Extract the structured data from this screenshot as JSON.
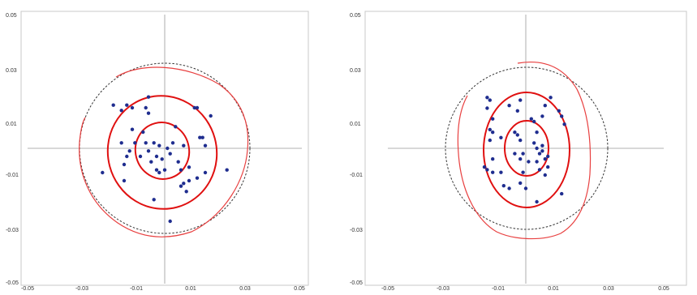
{
  "chart_data": [
    {
      "type": "scatter",
      "xlim": [
        -0.05,
        0.05
      ],
      "ylim": [
        -0.05,
        0.05
      ],
      "xticks": [
        "-0.05",
        "-0.03",
        "-0.01",
        "0.01",
        "0.03",
        "0.05"
      ],
      "yticks": [
        "0.05",
        "0.03",
        "0.01",
        "-0.01",
        "-0.03",
        "-0.05"
      ],
      "points": [
        [
          -0.019,
          0.016
        ],
        [
          -0.016,
          0.014
        ],
        [
          -0.014,
          0.016
        ],
        [
          -0.012,
          0.015
        ],
        [
          -0.006,
          0.013
        ],
        [
          -0.006,
          0.019
        ],
        [
          -0.007,
          0.015
        ],
        [
          -0.012,
          0.007
        ],
        [
          -0.011,
          0.002
        ],
        [
          -0.013,
          -0.001
        ],
        [
          -0.016,
          0.002
        ],
        [
          -0.014,
          -0.003
        ],
        [
          -0.015,
          -0.006
        ],
        [
          -0.023,
          -0.009
        ],
        [
          -0.015,
          -0.012
        ],
        [
          -0.008,
          0.006
        ],
        [
          -0.007,
          0.002
        ],
        [
          -0.006,
          -0.001
        ],
        [
          -0.004,
          0.002
        ],
        [
          -0.003,
          -0.003
        ],
        [
          -0.002,
          0.001
        ],
        [
          -0.005,
          -0.005
        ],
        [
          -0.003,
          -0.008
        ],
        [
          -0.001,
          -0.004
        ],
        [
          0.0,
          -0.008
        ],
        [
          -0.002,
          -0.009
        ],
        [
          0.001,
          0.0
        ],
        [
          0.002,
          -0.002
        ],
        [
          0.003,
          0.002
        ],
        [
          0.004,
          0.008
        ],
        [
          0.005,
          -0.005
        ],
        [
          0.006,
          -0.008
        ],
        [
          0.007,
          0.001
        ],
        [
          0.007,
          -0.013
        ],
        [
          0.006,
          -0.014
        ],
        [
          0.008,
          -0.016
        ],
        [
          0.009,
          -0.012
        ],
        [
          0.011,
          0.015
        ],
        [
          0.012,
          0.015
        ],
        [
          0.013,
          0.004
        ],
        [
          0.014,
          0.004
        ],
        [
          0.015,
          0.001
        ],
        [
          0.017,
          0.012
        ],
        [
          0.015,
          -0.009
        ],
        [
          0.012,
          -0.011
        ],
        [
          0.023,
          -0.008
        ],
        [
          -0.004,
          -0.019
        ],
        [
          0.002,
          -0.027
        ],
        [
          0.009,
          -0.007
        ],
        [
          -0.009,
          -0.003
        ]
      ]
    },
    {
      "type": "scatter",
      "xlim": [
        -0.05,
        0.05
      ],
      "ylim": [
        -0.05,
        0.05
      ],
      "xticks": [
        "-0.05",
        "-0.03",
        "-0.01",
        "0.01",
        "0.03",
        "0.05"
      ],
      "yticks": [
        "0.05",
        "0.03",
        "0.01",
        "-0.01",
        "-0.03",
        "-0.05"
      ],
      "points": [
        [
          -0.014,
          0.019
        ],
        [
          -0.013,
          0.018
        ],
        [
          -0.014,
          0.015
        ],
        [
          -0.012,
          0.011
        ],
        [
          -0.013,
          0.007
        ],
        [
          -0.012,
          0.006
        ],
        [
          -0.013,
          0.003
        ],
        [
          -0.015,
          -0.007
        ],
        [
          -0.012,
          -0.004
        ],
        [
          -0.014,
          -0.008
        ],
        [
          -0.012,
          -0.009
        ],
        [
          -0.009,
          -0.009
        ],
        [
          -0.006,
          0.016
        ],
        [
          -0.003,
          0.014
        ],
        [
          -0.002,
          0.018
        ],
        [
          -0.004,
          0.006
        ],
        [
          -0.003,
          0.005
        ],
        [
          -0.002,
          0.003
        ],
        [
          -0.004,
          -0.002
        ],
        [
          -0.002,
          -0.004
        ],
        [
          -0.001,
          -0.002
        ],
        [
          -0.001,
          -0.009
        ],
        [
          -0.002,
          -0.013
        ],
        [
          0.0,
          -0.015
        ],
        [
          0.002,
          0.011
        ],
        [
          0.003,
          0.01
        ],
        [
          0.004,
          0.006
        ],
        [
          0.003,
          0.002
        ],
        [
          0.004,
          0.0
        ],
        [
          0.005,
          -0.002
        ],
        [
          0.006,
          -0.001
        ],
        [
          0.006,
          0.001
        ],
        [
          0.004,
          -0.005
        ],
        [
          0.005,
          -0.008
        ],
        [
          0.007,
          -0.004
        ],
        [
          0.008,
          -0.003
        ],
        [
          0.008,
          -0.007
        ],
        [
          0.007,
          -0.01
        ],
        [
          0.006,
          0.012
        ],
        [
          0.007,
          0.016
        ],
        [
          0.009,
          0.019
        ],
        [
          0.012,
          0.014
        ],
        [
          0.013,
          0.012
        ],
        [
          0.014,
          0.009
        ],
        [
          0.004,
          -0.02
        ],
        [
          0.013,
          -0.017
        ],
        [
          -0.008,
          -0.014
        ],
        [
          -0.006,
          -0.015
        ],
        [
          -0.009,
          0.004
        ],
        [
          0.001,
          -0.005
        ]
      ]
    }
  ]
}
